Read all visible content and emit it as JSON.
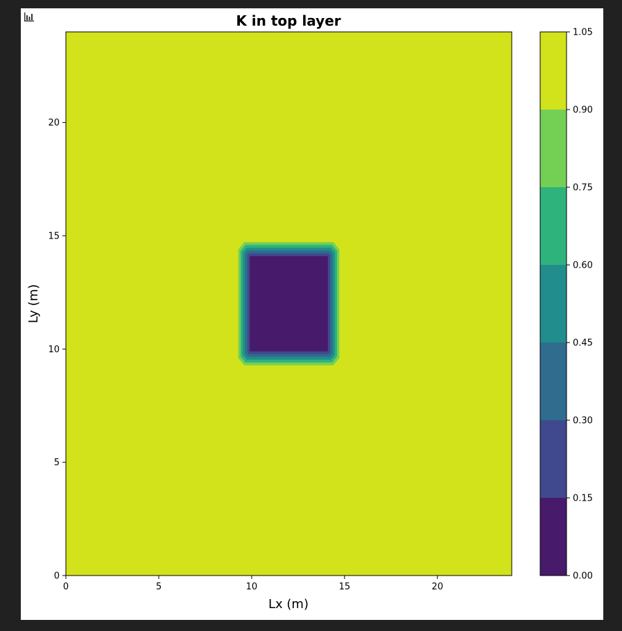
{
  "output_icon": "chart-output-icon",
  "chart_data": {
    "type": "heatmap",
    "title": "K in top layer",
    "xlabel": "Lx (m)",
    "ylabel": "Ly (m)",
    "xlim": [
      0,
      24
    ],
    "ylim": [
      0,
      24
    ],
    "xticks": [
      0,
      5,
      10,
      15,
      20
    ],
    "yticks": [
      0,
      5,
      10,
      15,
      20
    ],
    "grid": false,
    "background_value": 1.0,
    "low_k_zone": {
      "core_x": [
        10,
        14
      ],
      "core_y": [
        10,
        14
      ],
      "core_value": 0.02,
      "transition_width": 0.8
    },
    "colorbar": {
      "levels": [
        0.0,
        0.15,
        0.3,
        0.45,
        0.6,
        0.75,
        0.9,
        1.05
      ],
      "tick_labels": [
        "0.00",
        "0.15",
        "0.30",
        "0.45",
        "0.60",
        "0.75",
        "0.90",
        "1.05"
      ],
      "colors": [
        "#481a6c",
        "#40498e",
        "#2f6c8e",
        "#228d8d",
        "#2eb37c",
        "#74d055",
        "#d2e21b"
      ]
    }
  }
}
